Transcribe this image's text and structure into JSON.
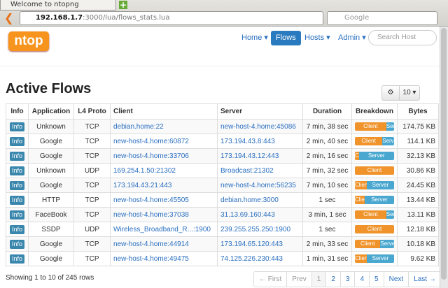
{
  "browser": {
    "tab_title": "Welcome to ntopng",
    "url_host": "192.168.1.7",
    "url_path": ":3000/lua/flows_stats.lua",
    "search_placeholder": "Google"
  },
  "nav": {
    "logo": "ntop",
    "items": [
      "Home",
      "Flows",
      "Hosts",
      "Admin"
    ],
    "search_placeholder": "Search Host"
  },
  "page": {
    "title": "Active Flows",
    "page_size": "10"
  },
  "table": {
    "columns": [
      "Info",
      "Application",
      "L4 Proto",
      "Client",
      "Server",
      "Duration",
      "Breakdown",
      "Bytes"
    ],
    "breakdown_labels": [
      "Client",
      "Server"
    ],
    "rows": [
      [
        "Info",
        "Unknown",
        "TCP",
        "debian.home:22",
        "new-host-4.home:45086",
        "7 min, 38 sec",
        80,
        "174.75 KB"
      ],
      [
        "Info",
        "Google",
        "TCP",
        "new-host-4.home:60872",
        "173.194.43.8:443",
        "2 min, 40 sec",
        70,
        "114.1 KB"
      ],
      [
        "Info",
        "Google",
        "TCP",
        "new-host-4.home:33706",
        "173.194.43.12:443",
        "2 min, 16 sec",
        10,
        "32.13 KB"
      ],
      [
        "Info",
        "Unknown",
        "UDP",
        "169.254.1.50:21302",
        "Broadcast:21302",
        "7 min, 32 sec",
        100,
        "30.86 KB"
      ],
      [
        "Info",
        "Google",
        "TCP",
        "173.194.43.21:443",
        "new-host-4.home:56235",
        "7 min, 10 sec",
        30,
        "24.45 KB"
      ],
      [
        "Info",
        "HTTP",
        "TCP",
        "new-host-4.home:45505",
        "debian.home:3000",
        "1 sec",
        25,
        "13.44 KB"
      ],
      [
        "Info",
        "FaceBook",
        "TCP",
        "new-host-4.home:37038",
        "31.13.69.160:443",
        "3 min, 1 sec",
        80,
        "13.11 KB"
      ],
      [
        "Info",
        "SSDP",
        "UDP",
        "Wireless_Broadband_R...:1900",
        "239.255.255.250:1900",
        "1 sec",
        100,
        "12.18 KB"
      ],
      [
        "Info",
        "Google",
        "TCP",
        "new-host-4.home:44914",
        "173.194.65.120:443",
        "2 min, 33 sec",
        65,
        "10.18 KB"
      ],
      [
        "Info",
        "Google",
        "TCP",
        "new-host-4.home:49475",
        "74.125.226.230:443",
        "1 min, 31 sec",
        30,
        "9.62 KB"
      ]
    ]
  },
  "footer": {
    "summary": "Showing 1 to 10 of 245 rows",
    "pagination": [
      "← First",
      "Prev",
      "1",
      "2",
      "3",
      "4",
      "5",
      "Next",
      "Last →"
    ]
  }
}
